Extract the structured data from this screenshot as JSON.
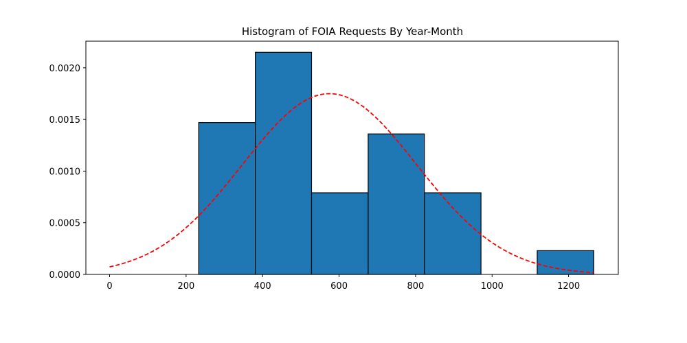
{
  "chart_data": {
    "type": "bar",
    "title": "Histogram of FOIA Requests By Year-Month",
    "xlabel": "",
    "ylabel": "",
    "xlim": [
      -62,
      1330
    ],
    "ylim": [
      0,
      0.002258
    ],
    "x_ticks": [
      0,
      200,
      400,
      600,
      800,
      1000,
      1200
    ],
    "x_tick_labels": [
      "0",
      "200",
      "400",
      "600",
      "800",
      "1000",
      "1200"
    ],
    "y_ticks": [
      0,
      0.0005,
      0.001,
      0.0015,
      0.002
    ],
    "y_tick_labels": [
      "0.0000",
      "0.0005",
      "0.0010",
      "0.0015",
      "0.0020"
    ],
    "bins": [
      {
        "x0": 233,
        "x1": 381,
        "value": 0.00147
      },
      {
        "x0": 381,
        "x1": 528,
        "value": 0.00215
      },
      {
        "x0": 528,
        "x1": 676,
        "value": 0.00079
      },
      {
        "x0": 676,
        "x1": 823,
        "value": 0.00136
      },
      {
        "x0": 823,
        "x1": 971,
        "value": 0.00079
      },
      {
        "x0": 971,
        "x1": 1118,
        "value": 0.0
      },
      {
        "x0": 1118,
        "x1": 1266,
        "value": 0.00023
      }
    ],
    "normal_curve": {
      "mean": 575,
      "std": 228,
      "x_range": [
        0,
        1266
      ],
      "style": "dashed"
    },
    "colors": {
      "bar_fill": "#1f77b4",
      "bar_edge": "#000000",
      "curve": "#ff0000"
    },
    "grid": false,
    "legend": "none"
  }
}
